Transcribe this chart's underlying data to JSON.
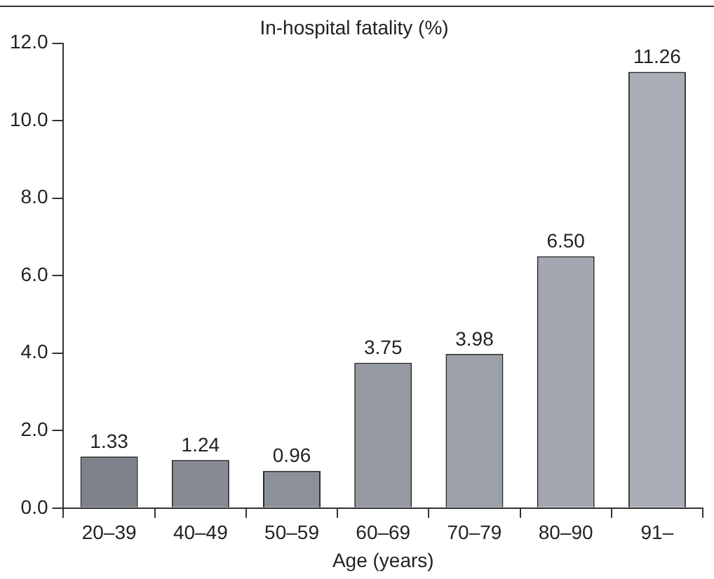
{
  "chart_data": {
    "type": "bar",
    "title": "In-hospital fatality (%)",
    "xlabel": "Age (years)",
    "categories": [
      "20–39",
      "40–49",
      "50–59",
      "60–69",
      "70–79",
      "80–90",
      "91–"
    ],
    "values": [
      1.33,
      1.24,
      0.96,
      3.75,
      3.98,
      6.5,
      11.26
    ],
    "value_labels": [
      "1.33",
      "1.24",
      "0.96",
      "3.75",
      "3.98",
      "6.50",
      "11.26"
    ],
    "colors": [
      "#7d828b",
      "#858a93",
      "#8c9199",
      "#959aa2",
      "#9ca1a9",
      "#a3a8b0",
      "#a9aeb6"
    ],
    "ylim": [
      0,
      12
    ],
    "yticks": [
      {
        "value": 0,
        "label": "0.0"
      },
      {
        "value": 2,
        "label": "2.0"
      },
      {
        "value": 4,
        "label": "4.0"
      },
      {
        "value": 6,
        "label": "6.0"
      },
      {
        "value": 8,
        "label": "8.0"
      },
      {
        "value": 10,
        "label": "10.0"
      },
      {
        "value": 12,
        "label": "12.0"
      }
    ],
    "grid": false,
    "legend": false
  }
}
